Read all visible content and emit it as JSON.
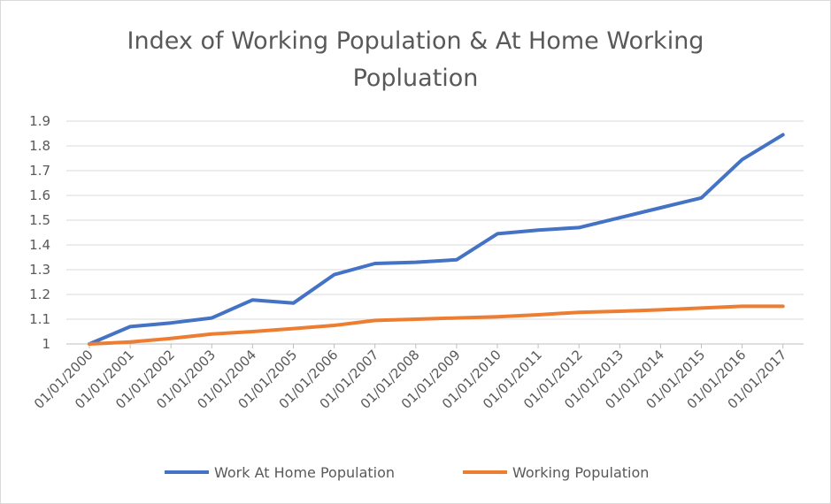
{
  "chart_data": {
    "type": "line",
    "title": "Index of Working Population & At Home Working\nPopluation",
    "xlabel": "",
    "ylabel": "",
    "ylim": [
      1,
      1.9
    ],
    "yticks": [
      "1",
      "1.1",
      "1.2",
      "1.3",
      "1.4",
      "1.5",
      "1.6",
      "1.7",
      "1.8",
      "1.9"
    ],
    "categories": [
      "01/01/2000",
      "01/01/2001",
      "01/01/2002",
      "01/01/2003",
      "01/01/2004",
      "01/01/2005",
      "01/01/2006",
      "01/01/2007",
      "01/01/2008",
      "01/01/2009",
      "01/01/2010",
      "01/01/2011",
      "01/01/2012",
      "01/01/2013",
      "01/01/2014",
      "01/01/2015",
      "01/01/2016",
      "01/01/2017"
    ],
    "series": [
      {
        "name": "Work At Home Population",
        "color": "#4472c4",
        "values": [
          1.0,
          1.07,
          1.085,
          1.105,
          1.178,
          1.165,
          1.28,
          1.325,
          1.33,
          1.34,
          1.445,
          1.46,
          1.47,
          1.51,
          1.55,
          1.59,
          1.745,
          1.845
        ]
      },
      {
        "name": "Working Population",
        "color": "#ed7d31",
        "values": [
          1.0,
          1.008,
          1.022,
          1.04,
          1.05,
          1.062,
          1.075,
          1.095,
          1.1,
          1.105,
          1.11,
          1.118,
          1.128,
          1.132,
          1.138,
          1.145,
          1.152,
          1.152
        ]
      }
    ],
    "grid": true,
    "legend_position": "bottom"
  }
}
